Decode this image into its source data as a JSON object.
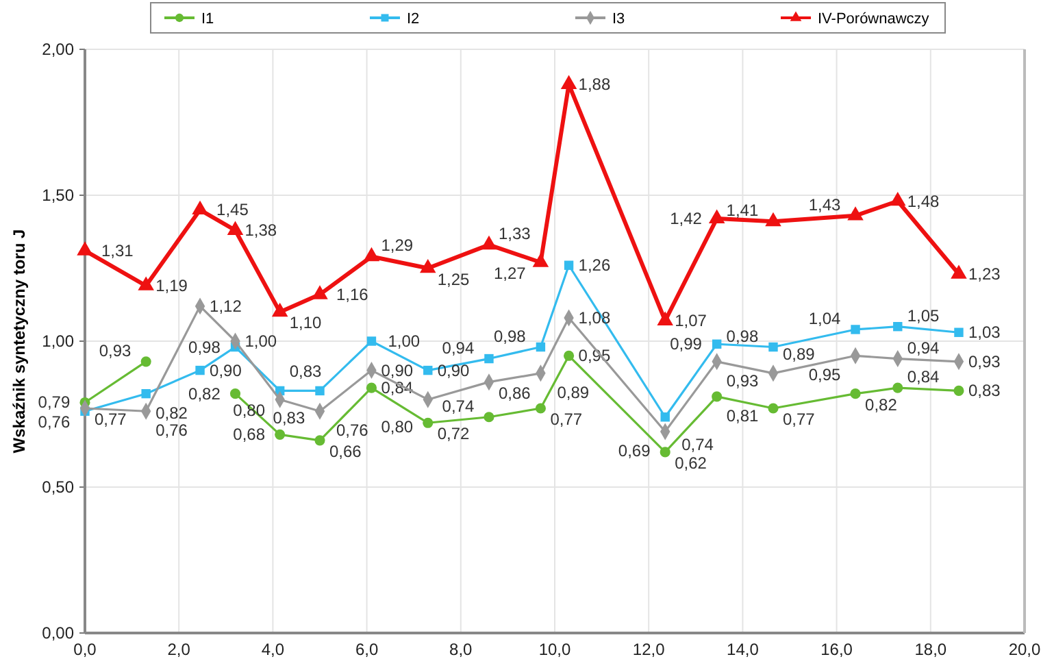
{
  "chart_data": {
    "type": "line",
    "ylabel": "Wskaźnik syntetyczny toru J",
    "x": [
      0,
      1.3,
      2.45,
      3.2,
      4.15,
      5.0,
      6.1,
      7.3,
      8.6,
      9.7,
      10.3,
      12.35,
      13.45,
      14.65,
      16.4,
      17.3,
      18.6
    ],
    "series": [
      {
        "name": "I1",
        "color": "#66bb33",
        "marker": "circle",
        "values": [
          0.79,
          0.93,
          null,
          0.82,
          0.68,
          0.66,
          0.84,
          0.72,
          0.74,
          0.77,
          0.95,
          0.62,
          0.81,
          0.77,
          0.82,
          0.84,
          0.83
        ],
        "value_labels": [
          "0,79",
          "0,93",
          null,
          "0,82",
          "0,68",
          "0,66",
          "0,84",
          "0,72",
          "0,74",
          "0,77",
          "0,95",
          "0,62",
          "0,81",
          "0,77",
          "0,82",
          "0,84",
          "0,83"
        ]
      },
      {
        "name": "I2",
        "color": "#33bbee",
        "marker": "square",
        "values": [
          0.76,
          0.82,
          0.9,
          0.98,
          0.83,
          0.83,
          1.0,
          0.9,
          0.94,
          0.98,
          1.26,
          0.74,
          0.99,
          0.98,
          1.04,
          1.05,
          1.03
        ],
        "value_labels": [
          "0,76",
          "0,82",
          "0,90",
          "0,98",
          "0,83",
          "0,83",
          "1,00",
          "0,90",
          "0,94",
          "0,98",
          "1,26",
          "0,74",
          "0,99",
          "0,98",
          "1,04",
          "1,05",
          "1,03"
        ]
      },
      {
        "name": "I3",
        "color": "#999999",
        "marker": "diamond",
        "values": [
          0.77,
          0.76,
          1.12,
          1.0,
          0.8,
          0.76,
          0.9,
          0.8,
          0.86,
          0.89,
          1.08,
          0.69,
          0.93,
          0.89,
          0.95,
          0.94,
          0.93
        ],
        "value_labels": [
          "0,77",
          "0,76",
          "1,12",
          "1,00",
          "0,80",
          "0,76",
          "0,90",
          "0,80",
          "0,86",
          "0,89",
          "1,08",
          "0,69",
          "0,93",
          "0,89",
          "0,95",
          "0,94",
          "0,93"
        ]
      },
      {
        "name": "IV-Porównawczy",
        "color": "#ee1111",
        "marker": "triangle",
        "values": [
          1.31,
          1.19,
          1.45,
          1.38,
          1.1,
          1.16,
          1.29,
          1.25,
          1.33,
          1.27,
          1.88,
          1.07,
          1.42,
          1.41,
          1.43,
          1.48,
          1.23
        ],
        "value_labels": [
          "1,31",
          "1,19",
          "1,45",
          "1,38",
          "1,10",
          "1,16",
          "1,29",
          "1,25",
          "1,33",
          "1,27",
          "1,88",
          "1,07",
          "1,42",
          "1,41",
          "1,43",
          "1,48",
          "1,23"
        ]
      }
    ],
    "xlim": [
      0,
      20
    ],
    "xticks": [
      {
        "value": 0,
        "label": "0,0"
      },
      {
        "value": 2,
        "label": "2,0"
      },
      {
        "value": 4,
        "label": "4,0"
      },
      {
        "value": 6,
        "label": "6,0"
      },
      {
        "value": 8,
        "label": "8,0"
      },
      {
        "value": 10,
        "label": "10,0"
      },
      {
        "value": 12,
        "label": "12,0"
      },
      {
        "value": 14,
        "label": "14,0"
      },
      {
        "value": 16,
        "label": "16,0"
      },
      {
        "value": 18,
        "label": "18,0"
      },
      {
        "value": 20,
        "label": "20,0"
      }
    ],
    "ylim": [
      0,
      2
    ],
    "yticks": [
      {
        "value": 0,
        "label": "0,00"
      },
      {
        "value": 0.5,
        "label": "0,50"
      },
      {
        "value": 1,
        "label": "1,00"
      },
      {
        "value": 1.5,
        "label": "1,50"
      },
      {
        "value": 2,
        "label": "2,00"
      }
    ],
    "grid": true,
    "legend": "top"
  }
}
